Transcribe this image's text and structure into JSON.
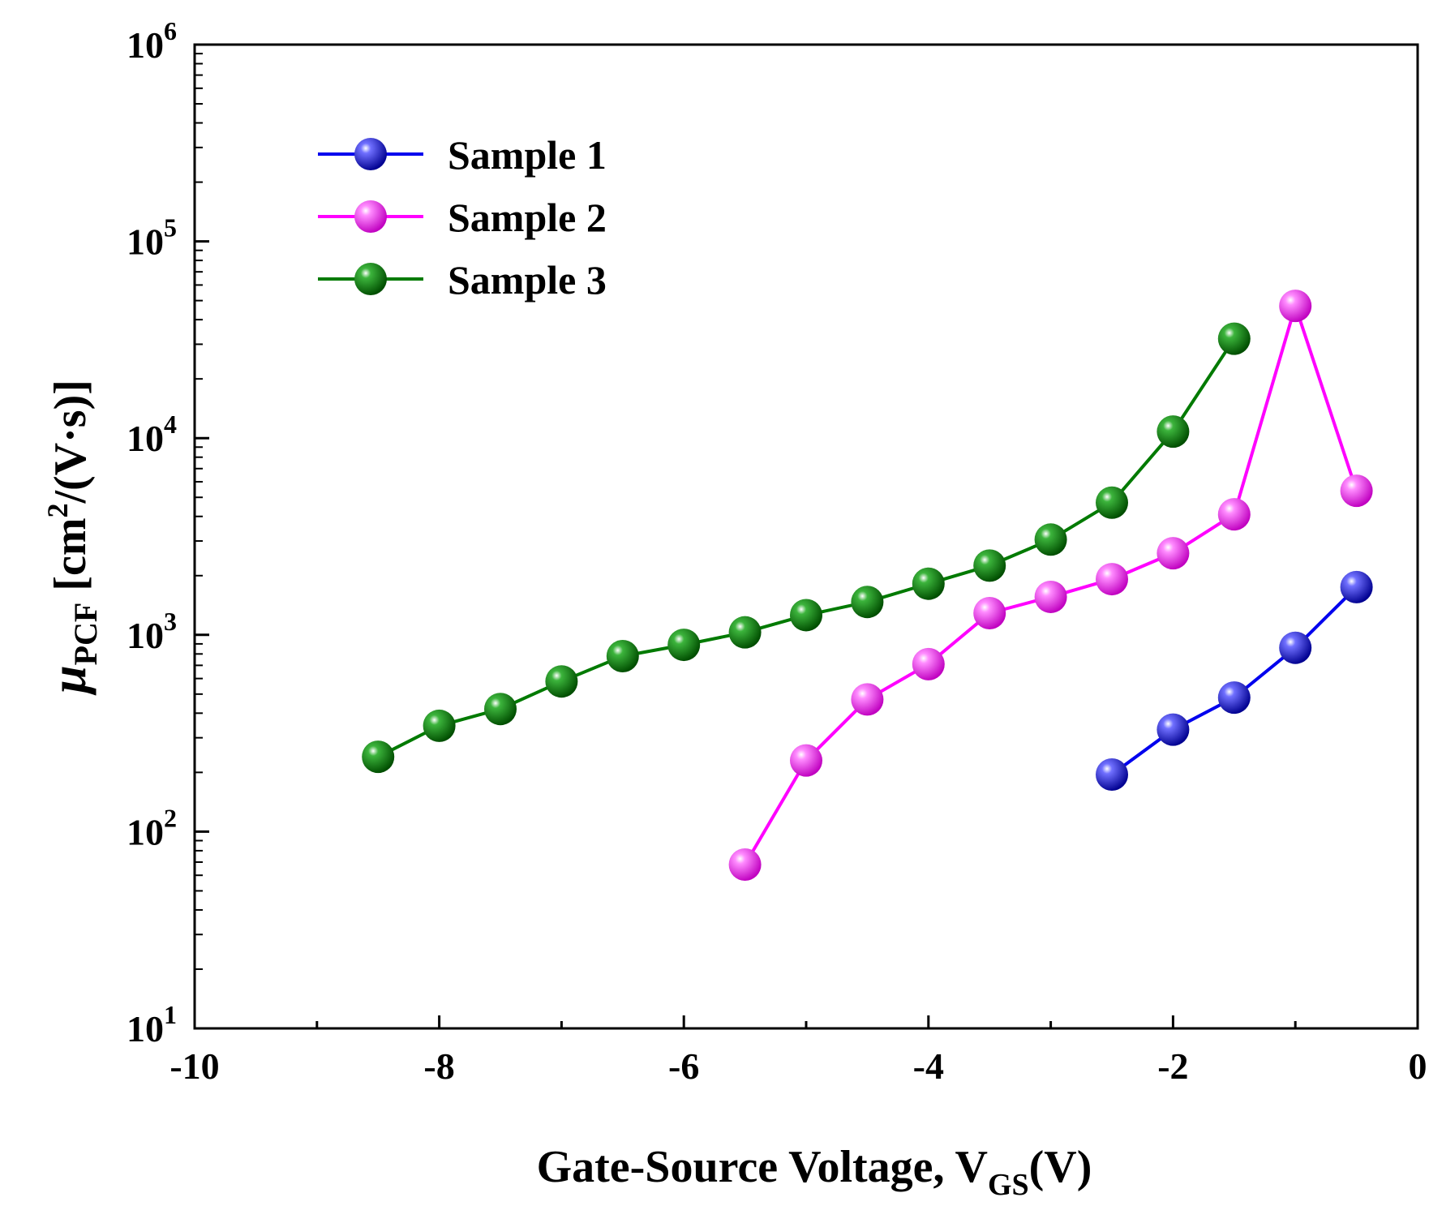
{
  "chart_data": {
    "type": "line",
    "xscale": "linear",
    "yscale": "log",
    "xlim": [
      -10,
      0
    ],
    "ylim": [
      10,
      1000000
    ],
    "xticks": [
      -10,
      -8,
      -6,
      -4,
      -2,
      0
    ],
    "xtick_labels": [
      "-10",
      "-8",
      "-6",
      "-4",
      "-2",
      "0"
    ],
    "ytick_exponents": [
      "1",
      "2",
      "3",
      "4",
      "5",
      "6"
    ],
    "ytick_base": "10",
    "xlabel": {
      "main": "Gate-Source Voltage, V",
      "sub": "GS",
      "tail": "(V)"
    },
    "ylabel": {
      "symbol": "μ",
      "sub": "PCF",
      "unit_pre": " [cm",
      "unit_sup": "2",
      "unit_post": "/(V·s)]"
    },
    "legend_position": "top-left",
    "grid": false,
    "series": [
      {
        "name": "Sample 1",
        "color": "#0000ee",
        "x": [
          -2.5,
          -2.0,
          -1.5,
          -1.0,
          -0.5
        ],
        "y": [
          195,
          330,
          480,
          860,
          1750
        ]
      },
      {
        "name": "Sample 2",
        "color": "#ff00ff",
        "x": [
          -5.5,
          -5.0,
          -4.5,
          -4.0,
          -3.5,
          -3.0,
          -2.5,
          -2.0,
          -1.5,
          -1.0,
          -0.5
        ],
        "y": [
          68,
          230,
          470,
          710,
          1290,
          1560,
          1920,
          2600,
          4100,
          47000,
          5400
        ]
      },
      {
        "name": "Sample 3",
        "color": "#007a00",
        "x": [
          -8.5,
          -8.0,
          -7.5,
          -7.0,
          -6.5,
          -6.0,
          -5.5,
          -5.0,
          -4.5,
          -4.0,
          -3.5,
          -3.0,
          -2.5,
          -2.0,
          -1.5
        ],
        "y": [
          240,
          345,
          420,
          580,
          780,
          890,
          1030,
          1260,
          1470,
          1820,
          2250,
          3050,
          4700,
          10800,
          32000
        ]
      }
    ]
  }
}
